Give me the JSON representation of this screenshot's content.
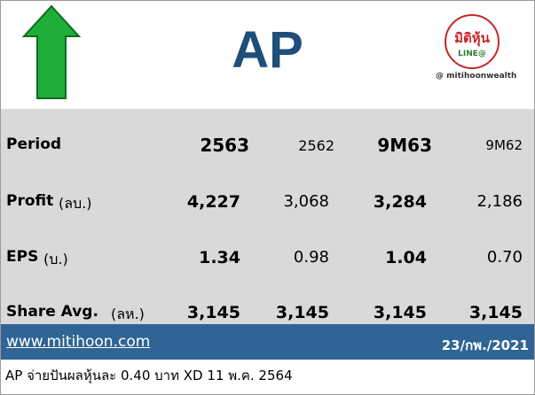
{
  "header": {
    "title": "AP",
    "logo": {
      "name": "มิติหุ้น",
      "line": "LINE@",
      "handle": "@ mitihoonwealth"
    }
  },
  "table": {
    "columns": [
      "Period",
      "2563",
      "2562",
      "9M63",
      "9M62"
    ],
    "rows": [
      [
        "Profit",
        "(ลบ.)",
        "4,227",
        "3,068",
        "3,284",
        "2,186"
      ],
      [
        "EPS",
        "(บ.)",
        "1.34",
        "0.98",
        "1.04",
        "0.70"
      ],
      [
        "Share Avg.",
        "(ลห.)",
        "3,145",
        "3,145",
        "3,145",
        "3,145"
      ]
    ]
  },
  "footer": {
    "website": "www.mitihoon.com",
    "date": "23/กพ./2021",
    "note": "AP จ่ายปันผลหุ้นละ 0.40 บาท XD 11 พ.ค. 2564"
  }
}
